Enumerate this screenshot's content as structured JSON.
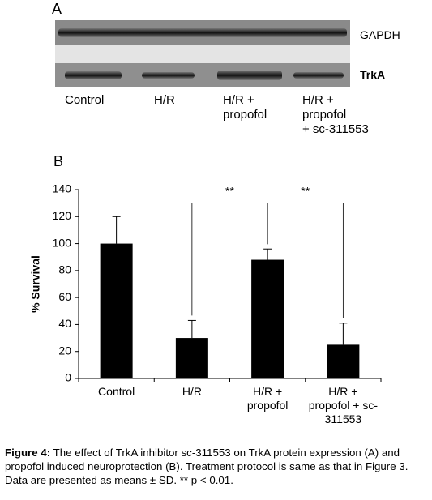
{
  "panel_a": {
    "label": "A",
    "band_labels": [
      "GAPDH",
      "TrkA"
    ],
    "lanes": [
      "Control",
      "H/R",
      "H/R +\npropofol",
      "H/R +\npropofol\n+ sc-311553"
    ]
  },
  "chart_data": {
    "type": "bar",
    "panel_label": "B",
    "y_label": "% Survival",
    "categories": [
      "Control",
      "H/R",
      "H/R +\npropofol",
      "H/R +\npropofol + sc-\n311553"
    ],
    "values": [
      100,
      30,
      88,
      25
    ],
    "errors": [
      20,
      13,
      8,
      16
    ],
    "color": "#000000",
    "ylim": [
      0,
      140
    ],
    "yticks": [
      0,
      20,
      40,
      60,
      80,
      100,
      120,
      140
    ],
    "annotations": [
      "**",
      "**"
    ]
  },
  "caption": {
    "label": "Figure 4:",
    "text": " The effect of TrkA inhibitor sc-311553 on TrkA protein expression (A) and propofol induced neuroprotection (B). Treatment protocol is same as that in Figure 3. Data are presented as means ± SD. ** p < 0.01."
  }
}
